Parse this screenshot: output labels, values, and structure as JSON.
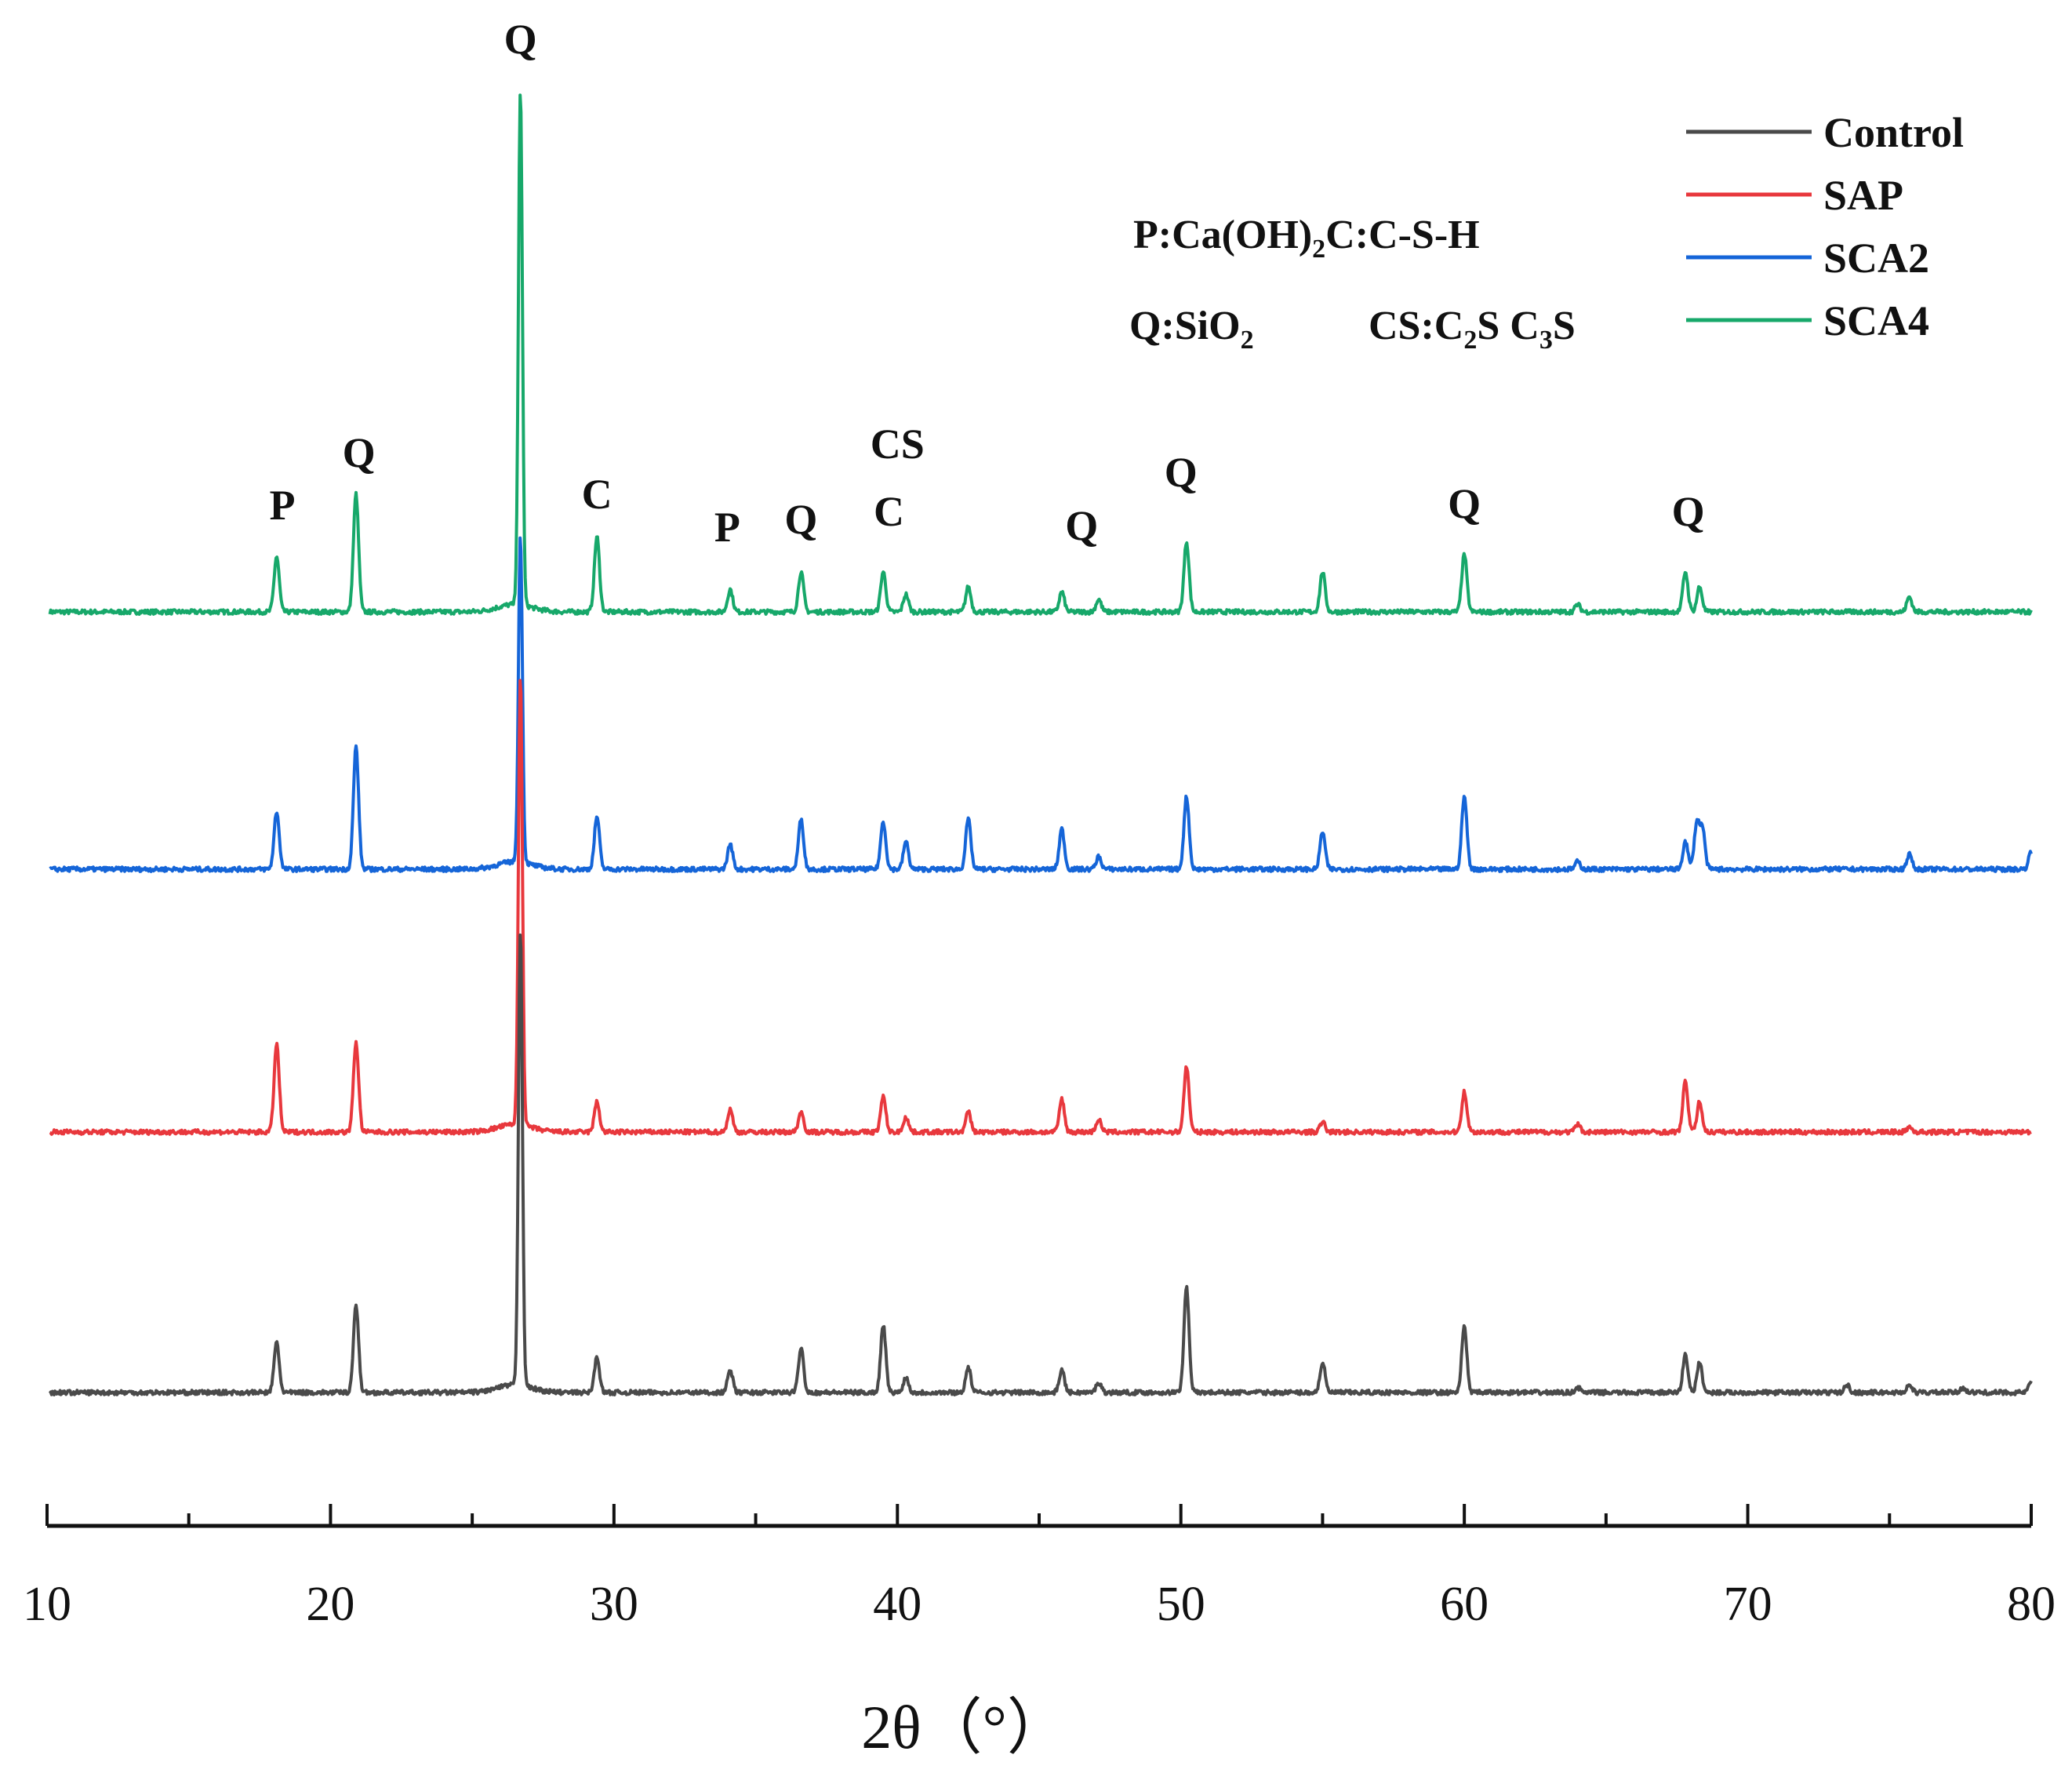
{
  "chart_data": {
    "type": "line",
    "title": "",
    "xlabel": "2θ（°）",
    "ylabel": "",
    "xlim": [
      10,
      80
    ],
    "x_ticks": [
      10,
      20,
      30,
      40,
      50,
      60,
      70,
      80
    ],
    "x_tick_labels": [
      "10",
      "20",
      "30",
      "40",
      "50",
      "60",
      "70",
      "80"
    ],
    "y_axis_shown": false,
    "grid": false,
    "legend_position": "top-right",
    "colors": {
      "Control": "#4a4a4a",
      "SAP": "#e8383d",
      "SCA2": "#1565d8",
      "SCA4": "#17a86a"
    },
    "series": [
      {
        "name": "SCA4",
        "peaks": [
          {
            "x": 18.1,
            "h": 0.22
          },
          {
            "x": 20.9,
            "h": 0.47
          },
          {
            "x": 26.7,
            "h": 2.05
          },
          {
            "x": 29.4,
            "h": 0.3
          },
          {
            "x": 34.1,
            "h": 0.09
          },
          {
            "x": 36.6,
            "h": 0.16
          },
          {
            "x": 39.5,
            "h": 0.16
          },
          {
            "x": 40.3,
            "h": 0.07
          },
          {
            "x": 42.5,
            "h": 0.1
          },
          {
            "x": 45.8,
            "h": 0.08
          },
          {
            "x": 47.1,
            "h": 0.05
          },
          {
            "x": 50.2,
            "h": 0.28
          },
          {
            "x": 55.0,
            "h": 0.16
          },
          {
            "x": 60.0,
            "h": 0.23
          },
          {
            "x": 64.0,
            "h": 0.03
          },
          {
            "x": 67.8,
            "h": 0.16
          },
          {
            "x": 68.3,
            "h": 0.1
          },
          {
            "x": 75.7,
            "h": 0.06
          }
        ]
      },
      {
        "name": "SCA2",
        "peaks": [
          {
            "x": 18.1,
            "h": 0.23
          },
          {
            "x": 20.9,
            "h": 0.49
          },
          {
            "x": 26.7,
            "h": 1.3
          },
          {
            "x": 29.4,
            "h": 0.21
          },
          {
            "x": 34.1,
            "h": 0.1
          },
          {
            "x": 36.6,
            "h": 0.2
          },
          {
            "x": 39.5,
            "h": 0.19
          },
          {
            "x": 40.3,
            "h": 0.11
          },
          {
            "x": 42.5,
            "h": 0.2
          },
          {
            "x": 45.8,
            "h": 0.16
          },
          {
            "x": 47.1,
            "h": 0.05
          },
          {
            "x": 50.2,
            "h": 0.29
          },
          {
            "x": 55.0,
            "h": 0.15
          },
          {
            "x": 60.0,
            "h": 0.29
          },
          {
            "x": 64.0,
            "h": 0.03
          },
          {
            "x": 67.8,
            "h": 0.11
          },
          {
            "x": 68.2,
            "h": 0.18
          },
          {
            "x": 68.4,
            "h": 0.16
          },
          {
            "x": 75.7,
            "h": 0.06
          },
          {
            "x": 80.0,
            "h": 0.07
          }
        ]
      },
      {
        "name": "SAP",
        "peaks": [
          {
            "x": 18.1,
            "h": 0.35
          },
          {
            "x": 20.9,
            "h": 0.36
          },
          {
            "x": 26.7,
            "h": 1.79
          },
          {
            "x": 29.4,
            "h": 0.12
          },
          {
            "x": 34.1,
            "h": 0.09
          },
          {
            "x": 36.6,
            "h": 0.08
          },
          {
            "x": 39.5,
            "h": 0.14
          },
          {
            "x": 40.3,
            "h": 0.06
          },
          {
            "x": 42.5,
            "h": 0.08
          },
          {
            "x": 45.8,
            "h": 0.13
          },
          {
            "x": 47.1,
            "h": 0.05
          },
          {
            "x": 50.2,
            "h": 0.26
          },
          {
            "x": 55.0,
            "h": 0.04
          },
          {
            "x": 60.0,
            "h": 0.16
          },
          {
            "x": 64.0,
            "h": 0.03
          },
          {
            "x": 67.8,
            "h": 0.2
          },
          {
            "x": 68.3,
            "h": 0.12
          },
          {
            "x": 75.7,
            "h": 0.02
          }
        ]
      },
      {
        "name": "Control",
        "peaks": [
          {
            "x": 18.1,
            "h": 0.2
          },
          {
            "x": 20.9,
            "h": 0.35
          },
          {
            "x": 26.7,
            "h": 1.82
          },
          {
            "x": 29.4,
            "h": 0.14
          },
          {
            "x": 34.1,
            "h": 0.09
          },
          {
            "x": 36.6,
            "h": 0.18
          },
          {
            "x": 39.5,
            "h": 0.27
          },
          {
            "x": 40.3,
            "h": 0.06
          },
          {
            "x": 42.5,
            "h": 0.1
          },
          {
            "x": 45.8,
            "h": 0.09
          },
          {
            "x": 47.1,
            "h": 0.04
          },
          {
            "x": 50.2,
            "h": 0.42
          },
          {
            "x": 55.0,
            "h": 0.12
          },
          {
            "x": 60.0,
            "h": 0.26
          },
          {
            "x": 64.0,
            "h": 0.02
          },
          {
            "x": 67.8,
            "h": 0.15
          },
          {
            "x": 68.3,
            "h": 0.12
          },
          {
            "x": 73.5,
            "h": 0.03
          },
          {
            "x": 75.7,
            "h": 0.03
          },
          {
            "x": 77.6,
            "h": 0.02
          },
          {
            "x": 80.0,
            "h": 0.04
          }
        ]
      }
    ],
    "peak_annotations": [
      {
        "text": "P",
        "x": 18.3
      },
      {
        "text": "Q",
        "x": 21.0
      },
      {
        "text": "Q",
        "x": 26.7
      },
      {
        "text": "C",
        "x": 29.4
      },
      {
        "text": "P",
        "x": 34.0
      },
      {
        "text": "Q",
        "x": 36.6
      },
      {
        "text": "CS",
        "x": 40.0
      },
      {
        "text": "C",
        "x": 39.7
      },
      {
        "text": "Q",
        "x": 46.5
      },
      {
        "text": "Q",
        "x": 50.0
      },
      {
        "text": "Q",
        "x": 60.0
      },
      {
        "text": "Q",
        "x": 67.9
      }
    ],
    "phase_key": {
      "p_prefix": "P:Ca(OH)",
      "p_sub": "2",
      "c_part": "C:C-S-H",
      "q_prefix": "Q:SiO",
      "q_sub": "2",
      "cs_prefix": "CS:C",
      "cs_sub1": "2",
      "cs_mid": "S  C",
      "cs_sub2": "3",
      "cs_suffix": "S"
    }
  }
}
